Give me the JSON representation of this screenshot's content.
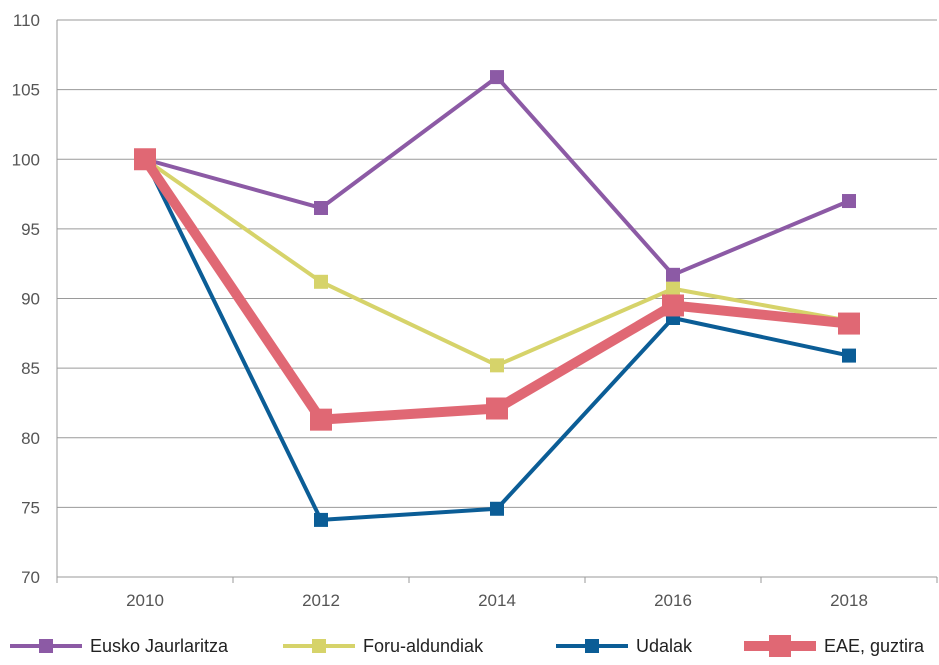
{
  "chart_data": {
    "type": "line",
    "title": "",
    "xlabel": "",
    "ylabel": "",
    "x": [
      "2010",
      "2012",
      "2014",
      "2016",
      "2018"
    ],
    "ylim": [
      70,
      110
    ],
    "yticks": [
      70,
      75,
      80,
      85,
      90,
      95,
      100,
      105,
      110
    ],
    "grid": "horizontal",
    "legend": "bottom",
    "series": [
      {
        "name": "Eusko Jaurlaritza",
        "color": "#8c5aa5",
        "values": [
          100,
          96.5,
          105.9,
          91.7,
          97.0
        ]
      },
      {
        "name": "Foru-aldundiak",
        "color": "#d6d36a",
        "values": [
          100,
          91.2,
          85.2,
          90.7,
          88.4
        ]
      },
      {
        "name": "Udalak",
        "color": "#0b5d96",
        "values": [
          100,
          74.1,
          74.9,
          88.6,
          85.9
        ]
      },
      {
        "name": "EAE, guztira",
        "color": "#e06874",
        "values": [
          100,
          81.3,
          82.1,
          89.5,
          88.2
        ]
      }
    ]
  }
}
